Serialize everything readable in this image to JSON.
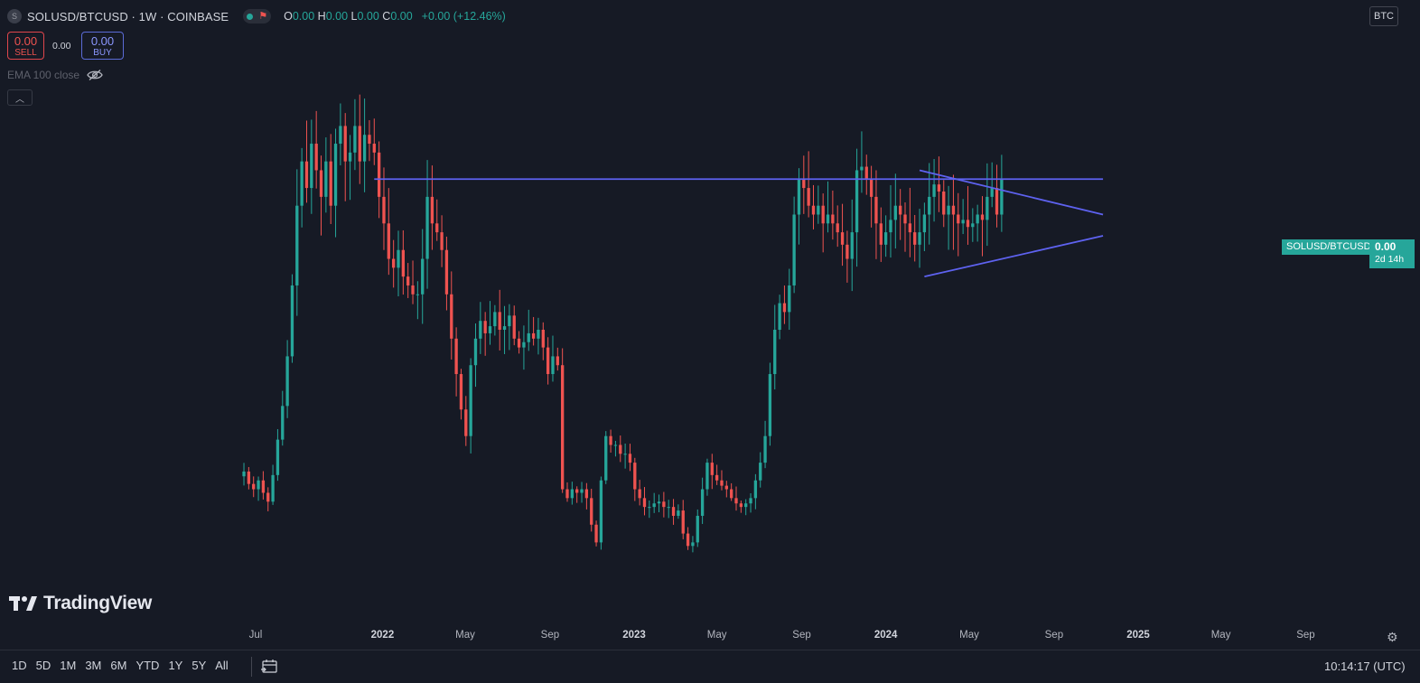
{
  "header": {
    "symbol_icon": "S",
    "title": "SOLUSD/BTCUSD · 1W · COINBASE",
    "ohlc": [
      {
        "k": "O",
        "v": "0.00"
      },
      {
        "k": "H",
        "v": "0.00"
      },
      {
        "k": "L",
        "v": "0.00"
      },
      {
        "k": "C",
        "v": "0.00"
      }
    ],
    "change": "+0.00 (+12.46%)",
    "status_colors": {
      "dot": "#26a69a",
      "flag": "#ef5350"
    }
  },
  "trade": {
    "sell_value": "0.00",
    "sell_label": "SELL",
    "spread": "0.00",
    "buy_value": "0.00",
    "buy_label": "BUY"
  },
  "indicator": {
    "label": "EMA 100 close",
    "visibility_icon": "eye-off-icon"
  },
  "currency": "BTC",
  "price_tag": {
    "symbol": "SOLUSD/BTCUSD",
    "value": "0.00",
    "countdown": "2d 14h"
  },
  "brand": {
    "name": "TradingView"
  },
  "toolbar": {
    "ranges": [
      "1D",
      "5D",
      "1M",
      "3M",
      "6M",
      "YTD",
      "1Y",
      "5Y",
      "All"
    ],
    "clock": "10:14:17 (UTC)"
  },
  "chart_data": {
    "type": "candlestick",
    "interval": "1W",
    "x_start": "2021-06-14",
    "x_end": "2024-11-04",
    "x_ticks": [
      {
        "label": "Jul",
        "date": "2021-07-01",
        "year": false
      },
      {
        "label": "2022",
        "date": "2022-01-01",
        "year": true
      },
      {
        "label": "May",
        "date": "2022-05-01",
        "year": false
      },
      {
        "label": "Sep",
        "date": "2022-09-01",
        "year": false
      },
      {
        "label": "2023",
        "date": "2023-01-01",
        "year": true
      },
      {
        "label": "May",
        "date": "2023-05-01",
        "year": false
      },
      {
        "label": "Sep",
        "date": "2023-09-01",
        "year": false
      },
      {
        "label": "2024",
        "date": "2024-01-01",
        "year": true
      },
      {
        "label": "May",
        "date": "2024-05-01",
        "year": false
      },
      {
        "label": "Sep",
        "date": "2024-09-01",
        "year": false
      },
      {
        "label": "2025",
        "date": "2025-01-01",
        "year": true
      },
      {
        "label": "May",
        "date": "2025-05-01",
        "year": false
      },
      {
        "label": "Sep",
        "date": "2025-09-01",
        "year": false
      }
    ],
    "closes": [
      0.0009,
      0.00083,
      0.0008,
      0.00085,
      0.00078,
      0.00073,
      0.00088,
      0.00108,
      0.00127,
      0.00155,
      0.00195,
      0.0024,
      0.00265,
      0.0025,
      0.00275,
      0.0026,
      0.00245,
      0.00265,
      0.0024,
      0.00275,
      0.00285,
      0.00265,
      0.0027,
      0.00285,
      0.00265,
      0.0028,
      0.00275,
      0.0027,
      0.00245,
      0.0023,
      0.0021,
      0.00205,
      0.00215,
      0.002,
      0.00195,
      0.0019,
      0.0019,
      0.0021,
      0.00245,
      0.0023,
      0.00225,
      0.00215,
      0.0019,
      0.00165,
      0.00145,
      0.00125,
      0.0011,
      0.0015,
      0.00165,
      0.00175,
      0.00168,
      0.00172,
      0.0018,
      0.0017,
      0.00172,
      0.00178,
      0.00165,
      0.0016,
      0.00163,
      0.00168,
      0.00165,
      0.0017,
      0.0016,
      0.00145,
      0.00155,
      0.0015,
      0.0008,
      0.00075,
      0.0008,
      0.00078,
      0.0008,
      0.00075,
      0.0006,
      0.0005,
      0.00085,
      0.0011,
      0.00105,
      0.00105,
      0.001,
      0.001,
      0.00095,
      0.0008,
      0.00075,
      0.0007,
      0.0007,
      0.00072,
      0.00073,
      0.0007,
      0.0007,
      0.00065,
      0.00068,
      0.00055,
      0.00048,
      0.0005,
      0.00065,
      0.0008,
      0.00095,
      0.00088,
      0.00085,
      0.00082,
      0.0008,
      0.00075,
      0.00072,
      0.0007,
      0.00072,
      0.00075,
      0.00085,
      0.00095,
      0.0011,
      0.00145,
      0.0017,
      0.00185,
      0.0018,
      0.00195,
      0.00235,
      0.00255,
      0.0025,
      0.0024,
      0.00235,
      0.0024,
      0.0023,
      0.00235,
      0.0023,
      0.00225,
      0.00218,
      0.0021,
      0.00225,
      0.0026,
      0.00262,
      0.00255,
      0.00245,
      0.0023,
      0.00218,
      0.00225,
      0.00232,
      0.0024,
      0.00235,
      0.0023,
      0.00225,
      0.00218,
      0.00225,
      0.00235,
      0.00245,
      0.00252,
      0.00248,
      0.00235,
      0.0024,
      0.00235,
      0.0023,
      0.00232,
      0.00228,
      0.0023,
      0.00235,
      0.00232,
      0.00245,
      0.0025,
      0.00235,
      0.00255
    ],
    "trendlines": [
      {
        "name": "resistance",
        "from": {
          "date": "2021-12-20",
          "value": 0.00255
        },
        "to": {
          "date": "2024-11-11",
          "value": 0.00255
        }
      },
      {
        "name": "triangle-upper",
        "from": {
          "date": "2024-02-19",
          "value": 0.0026
        },
        "to": {
          "date": "2024-11-11",
          "value": 0.00235
        }
      },
      {
        "name": "triangle-lower",
        "from": {
          "date": "2024-02-26",
          "value": 0.002
        },
        "to": {
          "date": "2024-11-11",
          "value": 0.00223
        }
      }
    ],
    "ylim": [
      0.0004,
      0.003
    ],
    "colors": {
      "up": "#26a69a",
      "down": "#ef5350",
      "trendline": "#5e62f0",
      "background": "#161a25"
    }
  }
}
